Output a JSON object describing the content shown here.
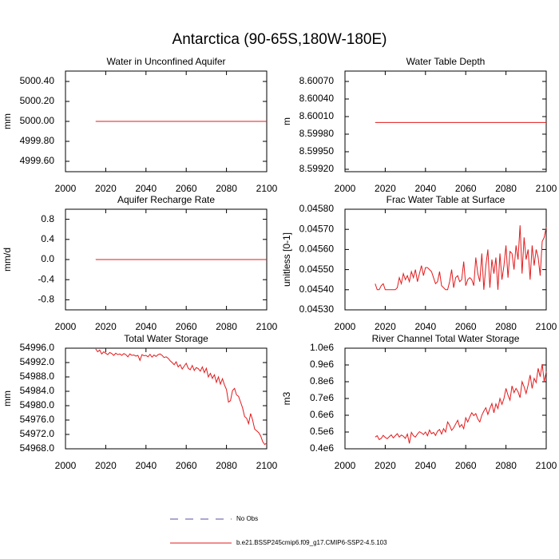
{
  "title": "Antarctica (90-65S,180W-180E)",
  "legend": [
    {
      "label": "No Obs",
      "color": "#5a4fa0",
      "dash": true
    },
    {
      "label": "b.e21.BSSP245cmip6.f09_g17.CMIP6-SSP2-4.5.103",
      "color": "#e31a1c",
      "dash": false
    }
  ],
  "chart_data": [
    {
      "type": "line",
      "title": "Water in Unconfined Aquifer",
      "ylabel": "mm",
      "x": [
        2015,
        2100
      ],
      "xlim": [
        2000,
        2100
      ],
      "xticks": [
        2000,
        2020,
        2040,
        2060,
        2080,
        2100
      ],
      "ylim": [
        4999.496,
        5000.504
      ],
      "yticks": [
        {
          "value": 5000.4,
          "label": "5000.40"
        },
        {
          "value": 5000.2,
          "label": "5000.20"
        },
        {
          "value": 5000,
          "label": "5000.00"
        },
        {
          "value": 4999.8,
          "label": "4999.80"
        },
        {
          "value": 4999.6,
          "label": "4999.60"
        }
      ],
      "series": [
        {
          "color": "#e31a1c",
          "values": [
            5000,
            5000
          ]
        }
      ]
    },
    {
      "type": "line",
      "title": "Water Table Depth",
      "ylabel": "m",
      "x": [
        2015,
        2100
      ],
      "xlim": [
        2000,
        2100
      ],
      "xticks": [
        2000,
        2020,
        2040,
        2060,
        2080,
        2100
      ],
      "ylim": [
        8.599159,
        8.600877
      ],
      "yticks": [
        {
          "value": 8.6007,
          "label": "8.60070"
        },
        {
          "value": 8.6004,
          "label": "8.60040"
        },
        {
          "value": 8.6001,
          "label": "8.60010"
        },
        {
          "value": 8.5998,
          "label": "8.59980"
        },
        {
          "value": 8.5995,
          "label": "8.59950"
        },
        {
          "value": 8.5992,
          "label": "8.59920"
        }
      ],
      "series": [
        {
          "color": "#e31a1c",
          "values": [
            8.6,
            8.6
          ]
        }
      ]
    },
    {
      "type": "line",
      "title": "Aquifer Recharge Rate",
      "ylabel": "mm/d",
      "x": [
        2015,
        2100
      ],
      "xlim": [
        2000,
        2100
      ],
      "xticks": [
        2000,
        2020,
        2040,
        2060,
        2080,
        2100
      ],
      "ylim": [
        -1,
        1
      ],
      "yticks": [
        0.8,
        0.4,
        {
          "value": 0,
          "label": "0.0"
        },
        -0.4,
        -0.8
      ],
      "series": [
        {
          "color": "#e31a1c",
          "values": [
            0,
            0
          ]
        }
      ]
    },
    {
      "type": "line",
      "title": "Frac Water Table at Surface",
      "ylabel": "unitless [0-1]",
      "x": [
        2015,
        2016,
        2017,
        2018,
        2019,
        2020,
        2021,
        2022,
        2023,
        2024,
        2025,
        2026,
        2027,
        2028,
        2029,
        2030,
        2031,
        2032,
        2033,
        2034,
        2035,
        2036,
        2037,
        2038,
        2039,
        2040,
        2041,
        2042,
        2043,
        2044,
        2045,
        2046,
        2047,
        2048,
        2049,
        2050,
        2051,
        2052,
        2053,
        2054,
        2055,
        2056,
        2057,
        2058,
        2059,
        2060,
        2061,
        2062,
        2063,
        2064,
        2065,
        2066,
        2067,
        2068,
        2069,
        2070,
        2071,
        2072,
        2073,
        2074,
        2075,
        2076,
        2077,
        2078,
        2079,
        2080,
        2081,
        2082,
        2083,
        2084,
        2085,
        2086,
        2087,
        2088,
        2089,
        2090,
        2091,
        2092,
        2093,
        2094,
        2095,
        2096,
        2097,
        2098,
        2099,
        2100
      ],
      "xlim": [
        2000,
        2100
      ],
      "xticks": [
        2000,
        2020,
        2040,
        2060,
        2080,
        2100
      ],
      "ylim": [
        0.0453,
        0.0458
      ],
      "yticks": [
        {
          "value": 0.0458,
          "label": "0.04580"
        },
        {
          "value": 0.0457,
          "label": "0.04570"
        },
        {
          "value": 0.0456,
          "label": "0.04560"
        },
        {
          "value": 0.0455,
          "label": "0.04550"
        },
        {
          "value": 0.0454,
          "label": "0.04540"
        },
        {
          "value": 0.0453,
          "label": "0.04530"
        }
      ],
      "series": [
        {
          "color": "#e31a1c",
          "values": [
            0.04543,
            0.0454,
            0.0454,
            0.04542,
            0.04543,
            0.0454,
            0.0454,
            0.0454,
            0.0454,
            0.0454,
            0.0454,
            0.04541,
            0.04546,
            0.04543,
            0.04548,
            0.04545,
            0.04547,
            0.04544,
            0.04549,
            0.04546,
            0.0455,
            0.04544,
            0.04548,
            0.04552,
            0.04547,
            0.04551,
            0.04551,
            0.0455,
            0.04549,
            0.04546,
            0.04543,
            0.04544,
            0.04549,
            0.04542,
            0.04541,
            0.0454,
            0.0454,
            0.04544,
            0.0455,
            0.04541,
            0.04546,
            0.04547,
            0.04544,
            0.04545,
            0.04554,
            0.04542,
            0.04545,
            0.04546,
            0.04545,
            0.04542,
            0.04556,
            0.04548,
            0.04544,
            0.04558,
            0.0454,
            0.04552,
            0.0456,
            0.04541,
            0.04555,
            0.04548,
            0.04556,
            0.0454,
            0.04558,
            0.04545,
            0.04552,
            0.04562,
            0.04546,
            0.04559,
            0.04558,
            0.0455,
            0.04562,
            0.04555,
            0.04572,
            0.04548,
            0.04566,
            0.04555,
            0.0456,
            0.04545,
            0.04562,
            0.04552,
            0.0456,
            0.04556,
            0.04547,
            0.04564,
            0.04566,
            0.04571
          ]
        }
      ]
    },
    {
      "type": "line",
      "title": "Total Water Storage",
      "ylabel": "mm",
      "x": [
        2015,
        2016,
        2017,
        2018,
        2019,
        2020,
        2021,
        2022,
        2023,
        2024,
        2025,
        2026,
        2027,
        2028,
        2029,
        2030,
        2031,
        2032,
        2033,
        2034,
        2035,
        2036,
        2037,
        2038,
        2039,
        2040,
        2041,
        2042,
        2043,
        2044,
        2045,
        2046,
        2047,
        2048,
        2049,
        2050,
        2051,
        2052,
        2053,
        2054,
        2055,
        2056,
        2057,
        2058,
        2059,
        2060,
        2061,
        2062,
        2063,
        2064,
        2065,
        2066,
        2067,
        2068,
        2069,
        2070,
        2071,
        2072,
        2073,
        2074,
        2075,
        2076,
        2077,
        2078,
        2079,
        2080,
        2081,
        2082,
        2083,
        2084,
        2085,
        2086,
        2087,
        2088,
        2089,
        2090,
        2091,
        2092,
        2093,
        2094,
        2095,
        2096,
        2097,
        2098,
        2099,
        2100
      ],
      "xlim": [
        2000,
        2100
      ],
      "xticks": [
        2000,
        2020,
        2040,
        2060,
        2080,
        2100
      ],
      "ylim": [
        54968,
        54996
      ],
      "yticks": [
        {
          "value": 54996,
          "label": "54996.0"
        },
        {
          "value": 54992,
          "label": "54992.0"
        },
        {
          "value": 54988,
          "label": "54988.0"
        },
        {
          "value": 54984,
          "label": "54984.0"
        },
        {
          "value": 54980,
          "label": "54980.0"
        },
        {
          "value": 54976,
          "label": "54976.0"
        },
        {
          "value": 54972,
          "label": "54972.0"
        },
        {
          "value": 54968,
          "label": "54968.0"
        }
      ],
      "series": [
        {
          "color": "#e31a1c",
          "values": [
            54995.8,
            54995.0,
            54995.5,
            54994.4,
            54995.0,
            54994.6,
            54994.2,
            54994.8,
            54994.5,
            54994.0,
            54994.6,
            54994.2,
            54994.4,
            54994.0,
            54994.5,
            54994.2,
            54993.6,
            54994.4,
            54994.0,
            54994.1,
            54993.8,
            54994.0,
            54992.6,
            54994.2,
            54993.9,
            54994.0,
            54993.6,
            54994.3,
            54993.5,
            54994.1,
            54993.7,
            54994.2,
            54994.4,
            54994.0,
            54993.4,
            54993.6,
            54993.2,
            54992.5,
            54992.0,
            54991.4,
            54992.2,
            54990.8,
            54991.4,
            54990.2,
            54991.0,
            54991.8,
            54990.4,
            54990.0,
            54991.2,
            54989.8,
            54990.6,
            54990.3,
            54989.6,
            54990.8,
            54989.2,
            54990.4,
            54988.0,
            54989.0,
            54987.6,
            54988.6,
            54986.5,
            54988.0,
            54986.0,
            54987.5,
            54985.8,
            54984.5,
            54981.0,
            54981.4,
            54984.2,
            54984.8,
            54983.0,
            54982.6,
            54981.0,
            54979.4,
            54977.0,
            54976.5,
            54975.0,
            54977.8,
            54976.0,
            54973.5,
            54973.0,
            54972.5,
            54971.6,
            54970.0,
            54969.2,
            54969.6
          ]
        }
      ]
    },
    {
      "type": "line",
      "title": "River Channel Total Water Storage",
      "ylabel": "m3",
      "x": [
        2015,
        2016,
        2017,
        2018,
        2019,
        2020,
        2021,
        2022,
        2023,
        2024,
        2025,
        2026,
        2027,
        2028,
        2029,
        2030,
        2031,
        2032,
        2033,
        2034,
        2035,
        2036,
        2037,
        2038,
        2039,
        2040,
        2041,
        2042,
        2043,
        2044,
        2045,
        2046,
        2047,
        2048,
        2049,
        2050,
        2051,
        2052,
        2053,
        2054,
        2055,
        2056,
        2057,
        2058,
        2059,
        2060,
        2061,
        2062,
        2063,
        2064,
        2065,
        2066,
        2067,
        2068,
        2069,
        2070,
        2071,
        2072,
        2073,
        2074,
        2075,
        2076,
        2077,
        2078,
        2079,
        2080,
        2081,
        2082,
        2083,
        2084,
        2085,
        2086,
        2087,
        2088,
        2089,
        2090,
        2091,
        2092,
        2093,
        2094,
        2095,
        2096,
        2097,
        2098,
        2099,
        2100
      ],
      "xlim": [
        2000,
        2100
      ],
      "xticks": [
        2000,
        2020,
        2040,
        2060,
        2080,
        2100
      ],
      "ylim": [
        400000,
        1000000
      ],
      "yticks": [
        {
          "value": 1000000,
          "label": "1.0e6"
        },
        {
          "value": 900000,
          "label": "0.9e6"
        },
        {
          "value": 800000,
          "label": "0.8e6"
        },
        {
          "value": 700000,
          "label": "0.7e6"
        },
        {
          "value": 600000,
          "label": "0.6e6"
        },
        {
          "value": 500000,
          "label": "0.5e6"
        },
        {
          "value": 400000,
          "label": "0.4e6"
        }
      ],
      "series": [
        {
          "color": "#e31a1c",
          "values": [
            470000,
            478000,
            455000,
            462000,
            480000,
            468000,
            460000,
            472000,
            483000,
            465000,
            478000,
            490000,
            470000,
            482000,
            475000,
            462000,
            488000,
            432000,
            498000,
            478000,
            470000,
            488000,
            502000,
            495000,
            485000,
            500000,
            478000,
            512000,
            490000,
            498000,
            480000,
            505000,
            515000,
            488000,
            520000,
            500000,
            560000,
            540000,
            510000,
            525000,
            548000,
            570000,
            530000,
            545000,
            520000,
            585000,
            560000,
            590000,
            615000,
            598000,
            610000,
            578000,
            560000,
            600000,
            625000,
            645000,
            605000,
            640000,
            670000,
            615000,
            668000,
            640000,
            700000,
            665000,
            700000,
            760000,
            720000,
            690000,
            775000,
            735000,
            760000,
            740000,
            705000,
            800000,
            770000,
            730000,
            780000,
            840000,
            760000,
            820000,
            795000,
            880000,
            830000,
            905000,
            800000,
            860000
          ]
        }
      ]
    }
  ]
}
